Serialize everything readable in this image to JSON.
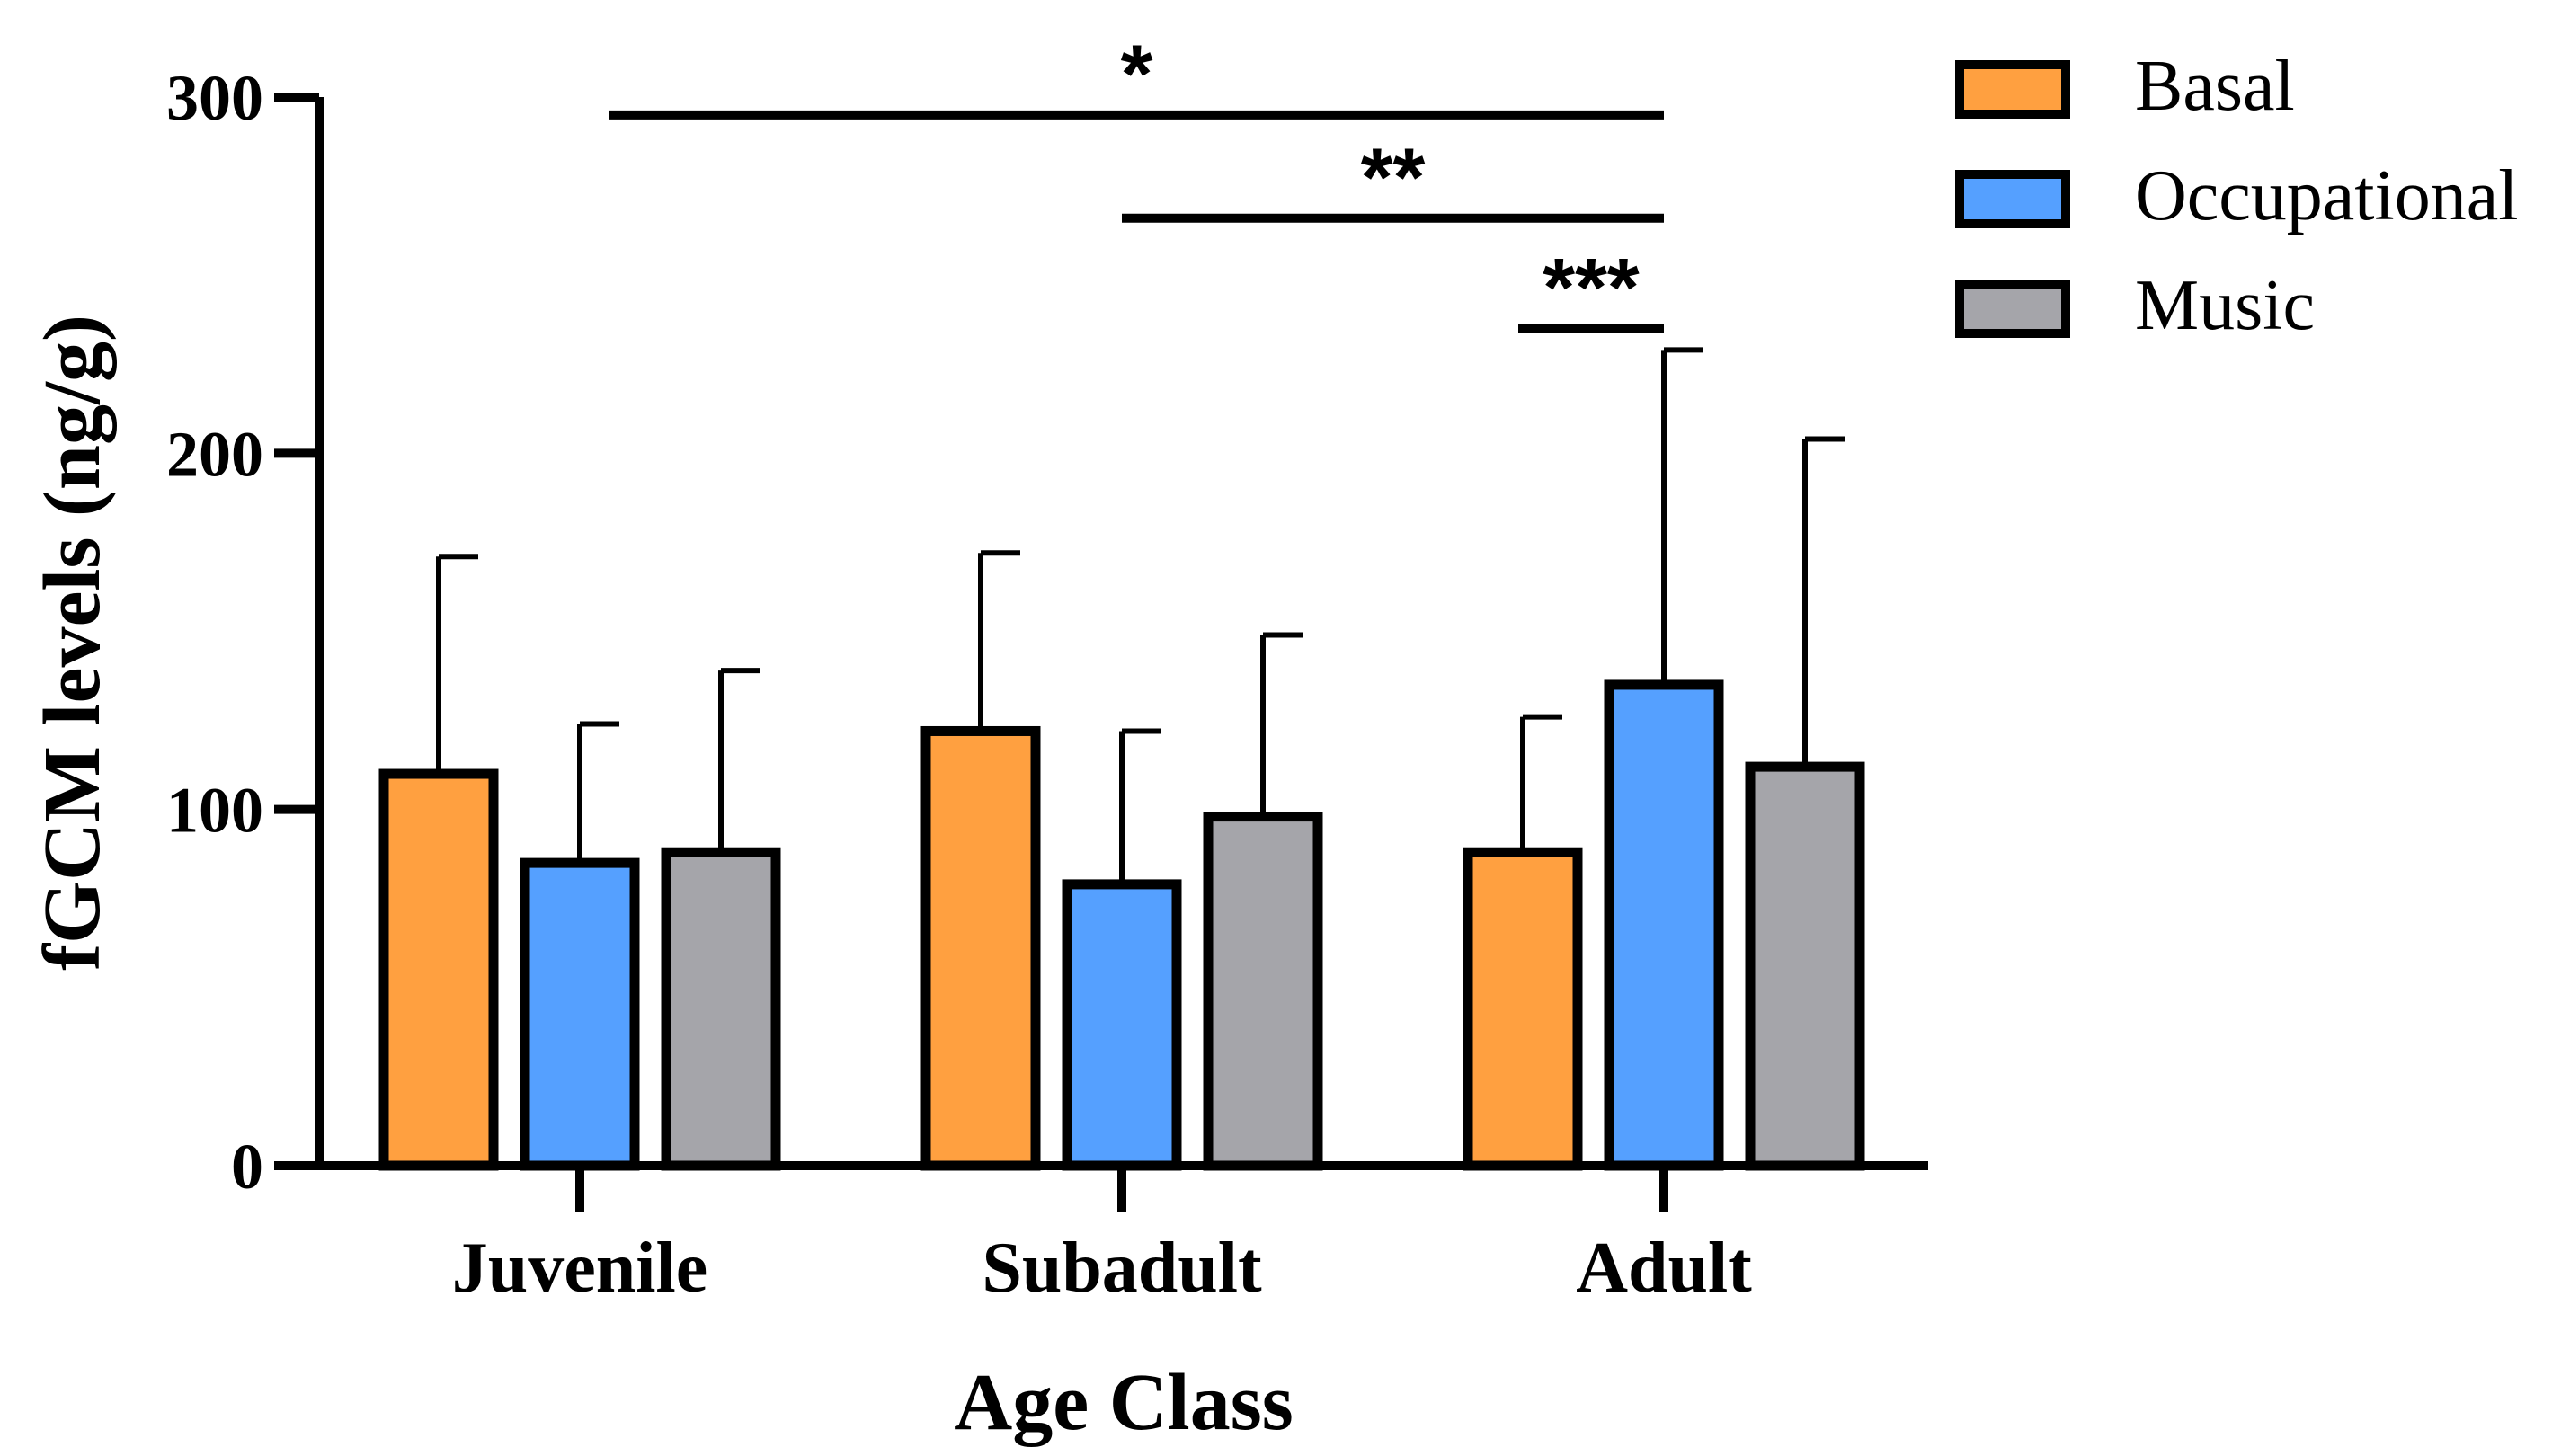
{
  "chart_data": {
    "type": "bar",
    "title": "",
    "xlabel": "Age Class",
    "ylabel": "fGCM levels (ng/g)",
    "ylim": [
      0,
      300
    ],
    "yticks": [
      "0",
      "100",
      "200",
      "300"
    ],
    "categories": [
      "Juvenile",
      "Subadult",
      "Adult"
    ],
    "series": [
      {
        "name": "Basal",
        "color": "#FFA040",
        "values": [
          110,
          122,
          88
        ],
        "error": [
          61,
          50,
          38
        ]
      },
      {
        "name": "Occupational",
        "color": "#55A0FF",
        "values": [
          85,
          79,
          135
        ],
        "error": [
          39,
          43,
          94
        ]
      },
      {
        "name": "Music",
        "color": "#A5A5AA",
        "values": [
          88,
          98,
          112
        ],
        "error": [
          51,
          51,
          92
        ]
      }
    ],
    "legend_position": "top-right",
    "significance": [
      {
        "label": "*",
        "from_category": "Juvenile",
        "to_category": "Adult",
        "value": 295
      },
      {
        "label": "**",
        "from_category": "Subadult",
        "to_category": "Adult",
        "value": 266
      },
      {
        "label": "***",
        "from": "Adult Basal",
        "to": "Adult Occupational",
        "value": 235
      }
    ]
  }
}
